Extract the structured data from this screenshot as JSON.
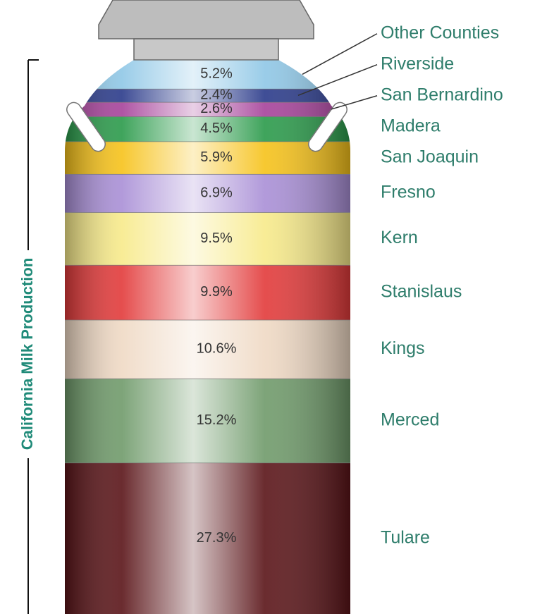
{
  "chart_data": {
    "type": "stacked-column",
    "ylabel": "California Milk Production",
    "categories": [
      "Tulare",
      "Merced",
      "Kings",
      "Stanislaus",
      "Kern",
      "Fresno",
      "San Joaquin",
      "Madera",
      "San Bernardino",
      "Riverside",
      "Other Counties"
    ],
    "values": [
      27.3,
      15.2,
      10.6,
      9.9,
      9.5,
      6.9,
      5.9,
      4.5,
      2.6,
      2.4,
      5.2
    ],
    "value_labels": [
      "27.3%",
      "15.2%",
      "10.6%",
      "9.9%",
      "9.5%",
      "6.9%",
      "5.9%",
      "4.5%",
      "2.6%",
      "2.4%",
      "5.2%"
    ],
    "colors": [
      "#5a1418",
      "#6f9a6a",
      "#efd9c4",
      "#e23a3a",
      "#f7ea8a",
      "#a98fd6",
      "#f6c21a",
      "#2a9a4a",
      "#a6429a",
      "#2a3a8a",
      "#8fc7e6"
    ]
  }
}
